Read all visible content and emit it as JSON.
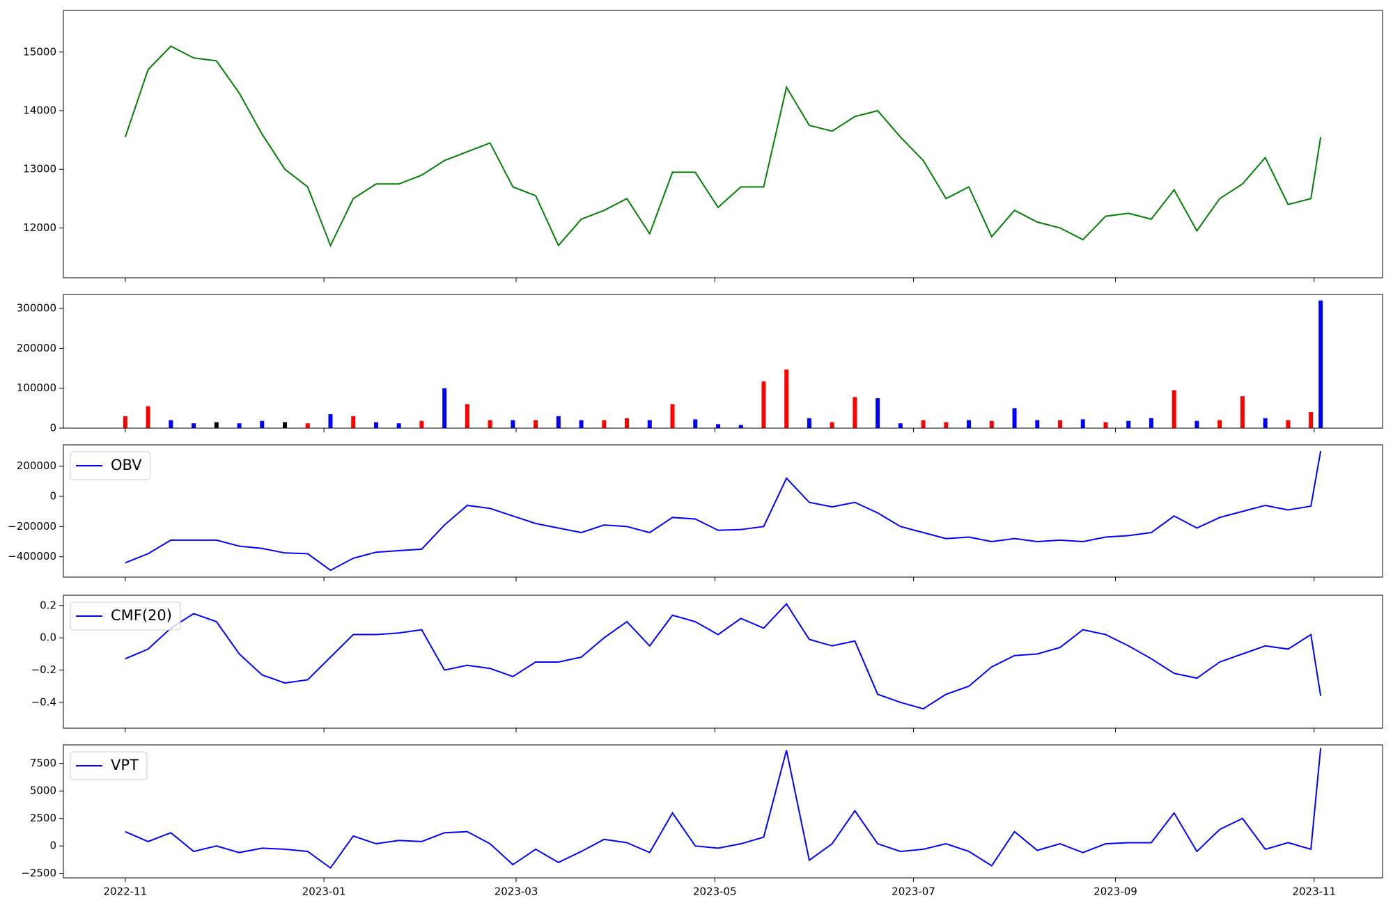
{
  "chart_data": [
    {
      "type": "line",
      "x": [
        "2022-11-01",
        "2022-11-08",
        "2022-11-15",
        "2022-11-22",
        "2022-11-29",
        "2022-12-06",
        "2022-12-13",
        "2022-12-20",
        "2022-12-27",
        "2023-01-03",
        "2023-01-10",
        "2023-01-17",
        "2023-01-24",
        "2023-01-31",
        "2023-02-07",
        "2023-02-14",
        "2023-02-21",
        "2023-02-28",
        "2023-03-07",
        "2023-03-14",
        "2023-03-21",
        "2023-03-28",
        "2023-04-04",
        "2023-04-11",
        "2023-04-18",
        "2023-04-25",
        "2023-05-02",
        "2023-05-09",
        "2023-05-16",
        "2023-05-23",
        "2023-05-30",
        "2023-06-06",
        "2023-06-13",
        "2023-06-20",
        "2023-06-27",
        "2023-07-04",
        "2023-07-11",
        "2023-07-18",
        "2023-07-25",
        "2023-08-01",
        "2023-08-08",
        "2023-08-15",
        "2023-08-22",
        "2023-08-29",
        "2023-09-05",
        "2023-09-12",
        "2023-09-19",
        "2023-09-26",
        "2023-10-03",
        "2023-10-10",
        "2023-10-17",
        "2023-10-24",
        "2023-10-31",
        "2023-11-03"
      ],
      "series": [
        {
          "color": "#008000",
          "values": [
            13550,
            14700,
            15100,
            14900,
            14850,
            14300,
            13600,
            13000,
            12700,
            11700,
            12500,
            12750,
            12750,
            12900,
            13150,
            13300,
            13450,
            12700,
            12550,
            11700,
            12150,
            12300,
            12500,
            11900,
            12950,
            12950,
            12350,
            12700,
            12700,
            14400,
            13750,
            13650,
            13900,
            14000,
            13550,
            13150,
            12500,
            12700,
            11850,
            12300,
            12100,
            12000,
            11800,
            12200,
            12250,
            12150,
            12650,
            11950,
            12500,
            12750,
            13200,
            12400,
            12500,
            13550
          ]
        }
      ],
      "xlim": [
        "2022-10-13",
        "2023-11-22"
      ],
      "ylim": [
        11150,
        15710
      ],
      "yticks": [
        12000,
        13000,
        14000,
        15000
      ]
    },
    {
      "type": "bar",
      "x": [
        "2022-11-01",
        "2022-11-08",
        "2022-11-15",
        "2022-11-22",
        "2022-11-29",
        "2022-12-06",
        "2022-12-13",
        "2022-12-20",
        "2022-12-27",
        "2023-01-03",
        "2023-01-10",
        "2023-01-17",
        "2023-01-24",
        "2023-01-31",
        "2023-02-07",
        "2023-02-14",
        "2023-02-21",
        "2023-02-28",
        "2023-03-07",
        "2023-03-14",
        "2023-03-21",
        "2023-03-28",
        "2023-04-04",
        "2023-04-11",
        "2023-04-18",
        "2023-04-25",
        "2023-05-02",
        "2023-05-09",
        "2023-05-16",
        "2023-05-23",
        "2023-05-30",
        "2023-06-06",
        "2023-06-13",
        "2023-06-20",
        "2023-06-27",
        "2023-07-04",
        "2023-07-11",
        "2023-07-18",
        "2023-07-25",
        "2023-08-01",
        "2023-08-08",
        "2023-08-15",
        "2023-08-22",
        "2023-08-29",
        "2023-09-05",
        "2023-09-12",
        "2023-09-19",
        "2023-09-26",
        "2023-10-03",
        "2023-10-10",
        "2023-10-17",
        "2023-10-24",
        "2023-10-31",
        "2023-11-03"
      ],
      "series": [
        {
          "values": [
            30000,
            55000,
            20000,
            12000,
            15000,
            12000,
            18000,
            15000,
            12000,
            35000,
            30000,
            15000,
            12000,
            18000,
            100000,
            60000,
            20000,
            20000,
            20000,
            30000,
            20000,
            20000,
            25000,
            20000,
            60000,
            22000,
            10000,
            8000,
            117000,
            147000,
            25000,
            15000,
            78000,
            75000,
            12000,
            20000,
            15000,
            20000,
            18000,
            50000,
            20000,
            20000,
            22000,
            15000,
            18000,
            25000,
            95000,
            18000,
            20000,
            80000,
            25000,
            20000,
            40000,
            320000
          ],
          "colors": [
            "#ff0000",
            "#ff0000",
            "#0000ff",
            "#0000ff",
            "#000000",
            "#0000ff",
            "#0000ff",
            "#000000",
            "#ff0000",
            "#0000ff",
            "#ff0000",
            "#0000ff",
            "#0000ff",
            "#ff0000",
            "#0000ff",
            "#ff0000",
            "#ff0000",
            "#0000ff",
            "#ff0000",
            "#0000ff",
            "#0000ff",
            "#ff0000",
            "#ff0000",
            "#0000ff",
            "#ff0000",
            "#0000ff",
            "#0000ff",
            "#0000ff",
            "#ff0000",
            "#ff0000",
            "#0000ff",
            "#ff0000",
            "#ff0000",
            "#0000ff",
            "#0000ff",
            "#ff0000",
            "#ff0000",
            "#0000ff",
            "#ff0000",
            "#0000ff",
            "#0000ff",
            "#ff0000",
            "#0000ff",
            "#ff0000",
            "#0000ff",
            "#0000ff",
            "#ff0000",
            "#0000ff",
            "#ff0000",
            "#ff0000",
            "#0000ff",
            "#ff0000",
            "#ff0000",
            "#0000ff"
          ]
        }
      ],
      "xlim": [
        "2022-10-13",
        "2023-11-22"
      ],
      "ylim": [
        0,
        335000
      ],
      "yticks": [
        0,
        100000,
        200000,
        300000
      ]
    },
    {
      "type": "line",
      "x": [
        "2022-11-01",
        "2022-11-08",
        "2022-11-15",
        "2022-11-22",
        "2022-11-29",
        "2022-12-06",
        "2022-12-13",
        "2022-12-20",
        "2022-12-27",
        "2023-01-03",
        "2023-01-10",
        "2023-01-17",
        "2023-01-24",
        "2023-01-31",
        "2023-02-07",
        "2023-02-14",
        "2023-02-21",
        "2023-02-28",
        "2023-03-07",
        "2023-03-14",
        "2023-03-21",
        "2023-03-28",
        "2023-04-04",
        "2023-04-11",
        "2023-04-18",
        "2023-04-25",
        "2023-05-02",
        "2023-05-09",
        "2023-05-16",
        "2023-05-23",
        "2023-05-30",
        "2023-06-06",
        "2023-06-13",
        "2023-06-20",
        "2023-06-27",
        "2023-07-04",
        "2023-07-11",
        "2023-07-18",
        "2023-07-25",
        "2023-08-01",
        "2023-08-08",
        "2023-08-15",
        "2023-08-22",
        "2023-08-29",
        "2023-09-05",
        "2023-09-12",
        "2023-09-19",
        "2023-09-26",
        "2023-10-03",
        "2023-10-10",
        "2023-10-17",
        "2023-10-24",
        "2023-10-31",
        "2023-11-03"
      ],
      "series": [
        {
          "name": "OBV",
          "color": "#0000ff",
          "values": [
            -440000,
            -380000,
            -290000,
            -290000,
            -290000,
            -330000,
            -345000,
            -375000,
            -380000,
            -490000,
            -410000,
            -370000,
            -360000,
            -350000,
            -190000,
            -60000,
            -80000,
            -130000,
            -180000,
            -210000,
            -240000,
            -190000,
            -200000,
            -240000,
            -140000,
            -150000,
            -225000,
            -220000,
            -200000,
            120000,
            -40000,
            -70000,
            -40000,
            -110000,
            -200000,
            -240000,
            -280000,
            -270000,
            -300000,
            -280000,
            -300000,
            -290000,
            -300000,
            -270000,
            -260000,
            -240000,
            -130000,
            -210000,
            -140000,
            -100000,
            -60000,
            -90000,
            -65000,
            300000
          ]
        }
      ],
      "xlim": [
        "2022-10-13",
        "2023-11-22"
      ],
      "ylim": [
        -535000,
        341000
      ],
      "legend": "upper left",
      "yticks": [
        {
          "value": -400000,
          "label": "−400000"
        },
        {
          "value": -200000,
          "label": "−200000"
        },
        0,
        200000
      ]
    },
    {
      "type": "line",
      "x": [
        "2022-11-01",
        "2022-11-08",
        "2022-11-15",
        "2022-11-22",
        "2022-11-29",
        "2022-12-06",
        "2022-12-13",
        "2022-12-20",
        "2022-12-27",
        "2023-01-03",
        "2023-01-10",
        "2023-01-17",
        "2023-01-24",
        "2023-01-31",
        "2023-02-07",
        "2023-02-14",
        "2023-02-21",
        "2023-02-28",
        "2023-03-07",
        "2023-03-14",
        "2023-03-21",
        "2023-03-28",
        "2023-04-04",
        "2023-04-11",
        "2023-04-18",
        "2023-04-25",
        "2023-05-02",
        "2023-05-09",
        "2023-05-16",
        "2023-05-23",
        "2023-05-30",
        "2023-06-06",
        "2023-06-13",
        "2023-06-20",
        "2023-06-27",
        "2023-07-04",
        "2023-07-11",
        "2023-07-18",
        "2023-07-25",
        "2023-08-01",
        "2023-08-08",
        "2023-08-15",
        "2023-08-22",
        "2023-08-29",
        "2023-09-05",
        "2023-09-12",
        "2023-09-19",
        "2023-09-26",
        "2023-10-03",
        "2023-10-10",
        "2023-10-17",
        "2023-10-24",
        "2023-10-31",
        "2023-11-03"
      ],
      "series": [
        {
          "name": "CMF(20)",
          "color": "#0000ff",
          "values": [
            -0.13,
            -0.07,
            0.06,
            0.15,
            0.1,
            -0.1,
            -0.23,
            -0.28,
            -0.26,
            -0.12,
            0.02,
            0.02,
            0.03,
            0.05,
            -0.2,
            -0.17,
            -0.19,
            -0.24,
            -0.15,
            -0.15,
            -0.12,
            0.0,
            0.1,
            -0.05,
            0.14,
            0.1,
            0.02,
            0.12,
            0.06,
            0.21,
            -0.01,
            -0.05,
            -0.02,
            -0.35,
            -0.4,
            -0.44,
            -0.35,
            -0.3,
            -0.18,
            -0.11,
            -0.1,
            -0.06,
            0.05,
            0.02,
            -0.05,
            -0.13,
            -0.22,
            -0.25,
            -0.15,
            -0.1,
            -0.05,
            -0.07,
            0.02,
            -0.36
          ]
        }
      ],
      "xlim": [
        "2022-10-13",
        "2023-11-22"
      ],
      "ylim": [
        -0.56,
        0.264
      ],
      "legend": "upper left",
      "yticks": [
        {
          "value": -0.4,
          "label": "−0.4"
        },
        {
          "value": -0.2,
          "label": "−0.2"
        },
        {
          "value": 0,
          "label": "0.0"
        },
        0.2
      ]
    },
    {
      "type": "line",
      "x": [
        "2022-11-01",
        "2022-11-08",
        "2022-11-15",
        "2022-11-22",
        "2022-11-29",
        "2022-12-06",
        "2022-12-13",
        "2022-12-20",
        "2022-12-27",
        "2023-01-03",
        "2023-01-10",
        "2023-01-17",
        "2023-01-24",
        "2023-01-31",
        "2023-02-07",
        "2023-02-14",
        "2023-02-21",
        "2023-02-28",
        "2023-03-07",
        "2023-03-14",
        "2023-03-21",
        "2023-03-28",
        "2023-04-04",
        "2023-04-11",
        "2023-04-18",
        "2023-04-25",
        "2023-05-02",
        "2023-05-09",
        "2023-05-16",
        "2023-05-23",
        "2023-05-30",
        "2023-06-06",
        "2023-06-13",
        "2023-06-20",
        "2023-06-27",
        "2023-07-04",
        "2023-07-11",
        "2023-07-18",
        "2023-07-25",
        "2023-08-01",
        "2023-08-08",
        "2023-08-15",
        "2023-08-22",
        "2023-08-29",
        "2023-09-05",
        "2023-09-12",
        "2023-09-19",
        "2023-09-26",
        "2023-10-03",
        "2023-10-10",
        "2023-10-17",
        "2023-10-24",
        "2023-10-31",
        "2023-11-03"
      ],
      "series": [
        {
          "name": "VPT",
          "color": "#0000ff",
          "values": [
            1300,
            400,
            1200,
            -500,
            0,
            -600,
            -200,
            -300,
            -500,
            -2000,
            900,
            200,
            500,
            400,
            1200,
            1300,
            200,
            -1700,
            -300,
            -1500,
            -500,
            600,
            300,
            -600,
            3000,
            0,
            -200,
            200,
            800,
            8700,
            -1300,
            200,
            3200,
            200,
            -500,
            -300,
            200,
            -500,
            -1800,
            1300,
            -400,
            200,
            -600,
            200,
            300,
            300,
            3000,
            -500,
            1500,
            2500,
            -300,
            300,
            -300,
            8900
          ]
        }
      ],
      "xlim": [
        "2022-10-13",
        "2023-11-22"
      ],
      "ylim": [
        -2900,
        9190
      ],
      "legend": "upper left",
      "yticks": [
        {
          "value": -2500,
          "label": "−2500"
        },
        0,
        2500,
        5000,
        7500
      ],
      "xticks": [
        {
          "value": "2022-11-01",
          "label": "2022-11"
        },
        {
          "value": "2023-01-01",
          "label": "2023-01"
        },
        {
          "value": "2023-03-01",
          "label": "2023-03"
        },
        {
          "value": "2023-05-01",
          "label": "2023-05"
        },
        {
          "value": "2023-07-01",
          "label": "2023-07"
        },
        {
          "value": "2023-09-01",
          "label": "2023-09"
        },
        {
          "value": "2023-11-01",
          "label": "2023-11"
        }
      ]
    }
  ]
}
